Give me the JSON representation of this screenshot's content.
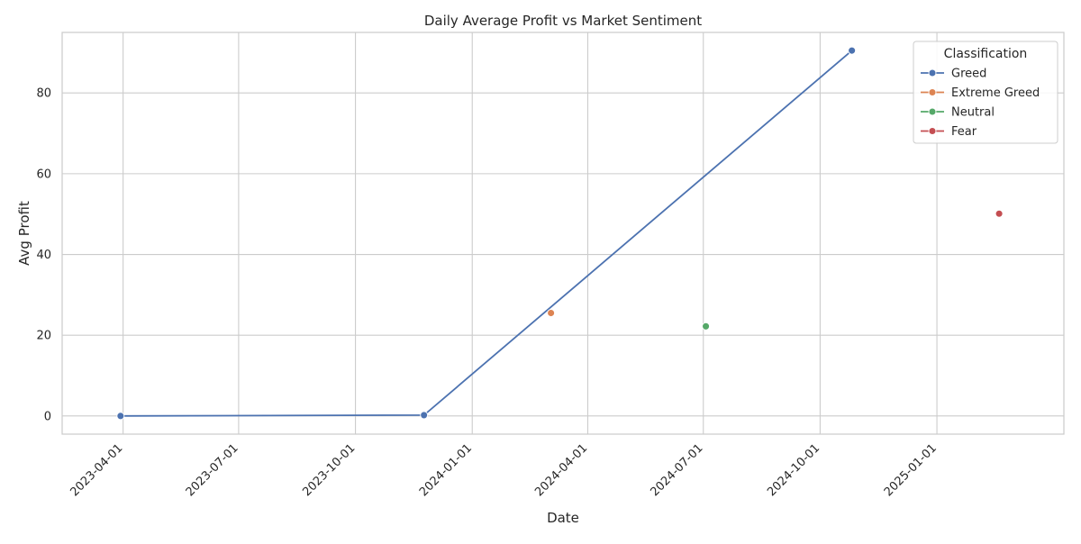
{
  "chart_data": {
    "type": "line",
    "title": "Daily Average Profit vs Market Sentiment",
    "xlabel": "Date",
    "ylabel": "Avg Profit",
    "x_ticks": [
      "2023-04-01",
      "2023-07-01",
      "2023-10-01",
      "2024-01-01",
      "2024-04-01",
      "2024-07-01",
      "2024-10-01",
      "2025-01-01"
    ],
    "y_ticks": [
      0,
      20,
      40,
      60,
      80
    ],
    "xlim": [
      "2023-02-12",
      "2025-04-11"
    ],
    "ylim": [
      -4.5,
      95
    ],
    "grid": true,
    "legend": {
      "title": "Classification",
      "position": "top-right"
    },
    "series": [
      {
        "name": "Greed",
        "color": "#4c72b0",
        "points": [
          {
            "x": "2023-03-30",
            "y": 0
          },
          {
            "x": "2023-11-24",
            "y": 0.2
          },
          {
            "x": "2024-10-26",
            "y": 90.5
          }
        ]
      },
      {
        "name": "Extreme Greed",
        "color": "#dd8452",
        "points": [
          {
            "x": "2024-03-03",
            "y": 25.5
          }
        ]
      },
      {
        "name": "Neutral",
        "color": "#55a868",
        "points": [
          {
            "x": "2024-07-03",
            "y": 22.2
          }
        ]
      },
      {
        "name": "Fear",
        "color": "#c44e52",
        "points": [
          {
            "x": "2025-02-19",
            "y": 50.1
          }
        ]
      }
    ]
  }
}
